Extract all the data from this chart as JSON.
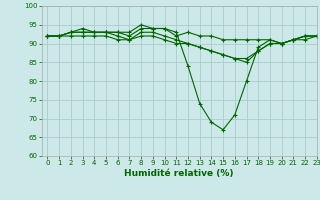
{
  "xlabel": "Humidité relative (%)",
  "background_color": "#cce8e8",
  "grid_color": "#aacccc",
  "line_color": "#006600",
  "xlim": [
    -0.5,
    23
  ],
  "ylim": [
    60,
    100
  ],
  "yticks": [
    60,
    65,
    70,
    75,
    80,
    85,
    90,
    95,
    100
  ],
  "xticks": [
    0,
    1,
    2,
    3,
    4,
    5,
    6,
    7,
    8,
    9,
    10,
    11,
    12,
    13,
    14,
    15,
    16,
    17,
    18,
    19,
    20,
    21,
    22,
    23
  ],
  "series": {
    "line1": [
      92,
      92,
      93,
      93,
      93,
      93,
      93,
      92,
      94,
      94,
      94,
      92,
      93,
      92,
      92,
      91,
      91,
      91,
      91,
      91,
      90,
      91,
      92,
      92
    ],
    "line2": [
      92,
      92,
      93,
      94,
      93,
      93,
      93,
      93,
      95,
      94,
      94,
      93,
      84,
      74,
      69,
      67,
      71,
      80,
      89,
      91,
      90,
      91,
      92,
      92
    ],
    "line3": [
      92,
      92,
      93,
      93,
      93,
      93,
      92,
      91,
      93,
      93,
      92,
      91,
      90,
      89,
      88,
      87,
      86,
      85,
      88,
      90,
      90,
      91,
      92,
      92
    ],
    "line4": [
      92,
      92,
      92,
      92,
      92,
      92,
      91,
      91,
      92,
      92,
      91,
      90,
      90,
      89,
      88,
      87,
      86,
      86,
      88,
      90,
      90,
      91,
      91,
      92
    ]
  }
}
